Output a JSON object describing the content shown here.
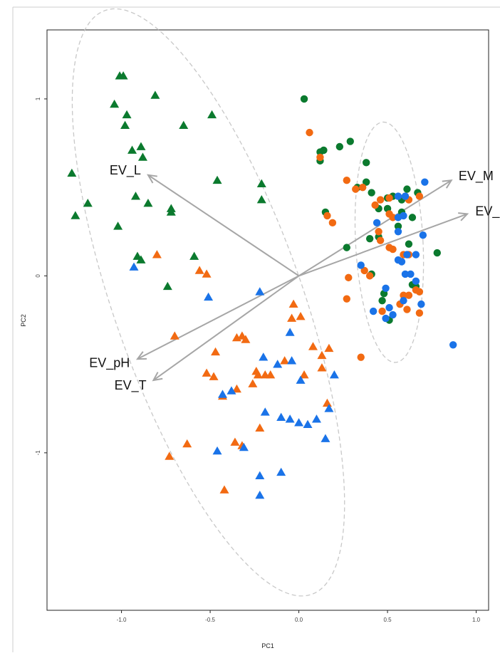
{
  "chart_data": {
    "type": "scatter",
    "title": "",
    "xlabel": "PC1",
    "ylabel": "PC2",
    "xlim": [
      -1.42,
      1.07
    ],
    "ylim": [
      -1.89,
      1.39
    ],
    "xticks": [
      "-1.0",
      "-0.5",
      "0.0",
      "0.5",
      "1.0"
    ],
    "yticks": [
      "1",
      "0",
      "-1"
    ],
    "grid": false,
    "colors": {
      "green": "#0b7a2e",
      "orange": "#f26a12",
      "blue": "#1a73e8",
      "arrow": "#a6a6a6",
      "ellipse": "#c8c8c8"
    },
    "vectors": [
      {
        "label": "EV_L",
        "x": -0.85,
        "y": 0.57
      },
      {
        "label": "EV_M",
        "x": 0.86,
        "y": 0.54
      },
      {
        "label": "EV_N",
        "x": 0.95,
        "y": 0.35
      },
      {
        "label": "EV_pH",
        "x": -0.91,
        "y": -0.47
      },
      {
        "label": "EV_T",
        "x": -0.82,
        "y": -0.59
      }
    ],
    "ellipses": [
      {
        "center": [
          -0.51,
          -0.15
        ],
        "semi_axes": [
          0.53,
          1.75
        ],
        "angle_deg": 19.5
      },
      {
        "center": [
          0.51,
          0.19
        ],
        "semi_axes": [
          0.19,
          0.68
        ],
        "angle_deg": 3
      }
    ],
    "series": [
      {
        "marker": "triangle",
        "color": "green",
        "points": [
          [
            -1.28,
            0.58
          ],
          [
            -1.26,
            0.34
          ],
          [
            -1.19,
            0.41
          ],
          [
            -1.04,
            0.97
          ],
          [
            -1.01,
            1.13
          ],
          [
            -0.99,
            1.13
          ],
          [
            -0.97,
            0.91
          ],
          [
            -0.98,
            0.85
          ],
          [
            -0.94,
            0.71
          ],
          [
            -0.89,
            0.73
          ],
          [
            -0.88,
            0.67
          ],
          [
            -0.92,
            0.45
          ],
          [
            -0.85,
            0.41
          ],
          [
            -0.81,
            1.02
          ],
          [
            -1.02,
            0.28
          ],
          [
            -0.65,
            0.85
          ],
          [
            -0.49,
            0.91
          ],
          [
            -0.46,
            0.54
          ],
          [
            -0.21,
            0.52
          ],
          [
            -0.21,
            0.43
          ],
          [
            -0.72,
            0.38
          ],
          [
            -0.72,
            0.36
          ],
          [
            -0.59,
            0.11
          ],
          [
            -0.91,
            0.11
          ],
          [
            -0.89,
            0.09
          ],
          [
            -0.74,
            -0.06
          ]
        ]
      },
      {
        "marker": "triangle",
        "color": "orange",
        "points": [
          [
            -0.8,
            0.12
          ],
          [
            -0.56,
            0.03
          ],
          [
            -0.52,
            0.01
          ],
          [
            -0.7,
            -0.34
          ],
          [
            -0.47,
            -0.43
          ],
          [
            -0.35,
            -0.35
          ],
          [
            -0.32,
            -0.34
          ],
          [
            -0.3,
            -0.36
          ],
          [
            -0.52,
            -0.55
          ],
          [
            -0.48,
            -0.57
          ],
          [
            -0.43,
            -0.68
          ],
          [
            -0.35,
            -0.64
          ],
          [
            -0.24,
            -0.54
          ],
          [
            -0.19,
            -0.56
          ],
          [
            -0.26,
            -0.61
          ],
          [
            -0.23,
            -0.56
          ],
          [
            -0.16,
            -0.56
          ],
          [
            -0.08,
            -0.48
          ],
          [
            -0.03,
            -0.16
          ],
          [
            -0.04,
            -0.24
          ],
          [
            0.01,
            -0.23
          ],
          [
            0.03,
            -0.56
          ],
          [
            0.08,
            -0.4
          ],
          [
            0.13,
            -0.52
          ],
          [
            0.13,
            -0.45
          ],
          [
            0.17,
            -0.41
          ],
          [
            0.16,
            -0.72
          ],
          [
            -0.63,
            -0.95
          ],
          [
            -0.73,
            -1.02
          ],
          [
            -0.32,
            -0.96
          ],
          [
            -0.36,
            -0.94
          ],
          [
            -0.22,
            -0.86
          ],
          [
            -0.42,
            -1.21
          ]
        ]
      },
      {
        "marker": "triangle",
        "color": "blue",
        "points": [
          [
            -0.93,
            0.05
          ],
          [
            -0.51,
            -0.12
          ],
          [
            -0.22,
            -0.09
          ],
          [
            -0.05,
            -0.32
          ],
          [
            -0.2,
            -0.46
          ],
          [
            -0.12,
            -0.5
          ],
          [
            -0.04,
            -0.48
          ],
          [
            -0.43,
            -0.67
          ],
          [
            -0.38,
            -0.65
          ],
          [
            -0.19,
            -0.77
          ],
          [
            -0.1,
            -0.8
          ],
          [
            -0.05,
            -0.81
          ],
          [
            0.0,
            -0.83
          ],
          [
            0.05,
            -0.84
          ],
          [
            0.1,
            -0.81
          ],
          [
            0.15,
            -0.92
          ],
          [
            0.17,
            -0.75
          ],
          [
            0.2,
            -0.56
          ],
          [
            0.01,
            -0.59
          ],
          [
            -0.31,
            -0.97
          ],
          [
            -0.46,
            -0.99
          ],
          [
            -0.22,
            -1.13
          ],
          [
            -0.1,
            -1.11
          ],
          [
            -0.22,
            -1.24
          ]
        ]
      },
      {
        "marker": "circle",
        "color": "green",
        "points": [
          [
            0.03,
            1.0
          ],
          [
            0.12,
            0.7
          ],
          [
            0.14,
            0.71
          ],
          [
            0.12,
            0.65
          ],
          [
            0.23,
            0.73
          ],
          [
            0.29,
            0.76
          ],
          [
            0.33,
            0.5
          ],
          [
            0.38,
            0.53
          ],
          [
            0.38,
            0.64
          ],
          [
            0.41,
            0.47
          ],
          [
            0.45,
            0.38
          ],
          [
            0.5,
            0.44
          ],
          [
            0.53,
            0.45
          ],
          [
            0.58,
            0.43
          ],
          [
            0.61,
            0.49
          ],
          [
            0.67,
            0.47
          ],
          [
            0.15,
            0.36
          ],
          [
            0.5,
            0.38
          ],
          [
            0.58,
            0.36
          ],
          [
            0.64,
            0.33
          ],
          [
            0.27,
            0.16
          ],
          [
            0.4,
            0.21
          ],
          [
            0.45,
            0.22
          ],
          [
            0.62,
            0.18
          ],
          [
            0.78,
            0.13
          ],
          [
            0.56,
            0.28
          ],
          [
            0.41,
            0.01
          ],
          [
            0.48,
            -0.1
          ],
          [
            0.64,
            -0.05
          ],
          [
            0.66,
            -0.06
          ],
          [
            0.47,
            -0.14
          ],
          [
            0.51,
            -0.25
          ]
        ]
      },
      {
        "marker": "circle",
        "color": "orange",
        "points": [
          [
            0.06,
            0.81
          ],
          [
            0.12,
            0.67
          ],
          [
            0.16,
            0.34
          ],
          [
            0.19,
            0.3
          ],
          [
            0.27,
            0.54
          ],
          [
            0.32,
            0.49
          ],
          [
            0.36,
            0.5
          ],
          [
            0.43,
            0.4
          ],
          [
            0.46,
            0.43
          ],
          [
            0.51,
            0.44
          ],
          [
            0.6,
            0.45
          ],
          [
            0.62,
            0.43
          ],
          [
            0.68,
            0.45
          ],
          [
            0.45,
            0.25
          ],
          [
            0.46,
            0.2
          ],
          [
            0.59,
            0.12
          ],
          [
            0.62,
            0.12
          ],
          [
            0.51,
            0.35
          ],
          [
            0.53,
            0.33
          ],
          [
            0.37,
            0.03
          ],
          [
            0.4,
            0.0
          ],
          [
            0.28,
            -0.01
          ],
          [
            0.27,
            -0.13
          ],
          [
            0.51,
            0.16
          ],
          [
            0.53,
            0.15
          ],
          [
            0.59,
            -0.11
          ],
          [
            0.62,
            -0.11
          ],
          [
            0.66,
            -0.08
          ],
          [
            0.68,
            -0.09
          ],
          [
            0.57,
            -0.16
          ],
          [
            0.61,
            -0.19
          ],
          [
            0.68,
            -0.21
          ],
          [
            0.35,
            -0.46
          ],
          [
            0.47,
            -0.2
          ]
        ]
      },
      {
        "marker": "circle",
        "color": "blue",
        "points": [
          [
            0.71,
            0.53
          ],
          [
            0.56,
            0.45
          ],
          [
            0.6,
            0.45
          ],
          [
            0.44,
            0.3
          ],
          [
            0.56,
            0.33
          ],
          [
            0.59,
            0.34
          ],
          [
            0.56,
            0.25
          ],
          [
            0.61,
            0.12
          ],
          [
            0.66,
            0.12
          ],
          [
            0.7,
            0.23
          ],
          [
            0.58,
            0.08
          ],
          [
            0.56,
            0.09
          ],
          [
            0.35,
            0.06
          ],
          [
            0.6,
            0.01
          ],
          [
            0.66,
            -0.03
          ],
          [
            0.63,
            0.01
          ],
          [
            0.49,
            -0.07
          ],
          [
            0.69,
            -0.16
          ],
          [
            0.42,
            -0.2
          ],
          [
            0.49,
            -0.24
          ],
          [
            0.53,
            -0.22
          ],
          [
            0.59,
            -0.14
          ],
          [
            0.51,
            -0.18
          ],
          [
            0.87,
            -0.39
          ]
        ]
      }
    ]
  }
}
